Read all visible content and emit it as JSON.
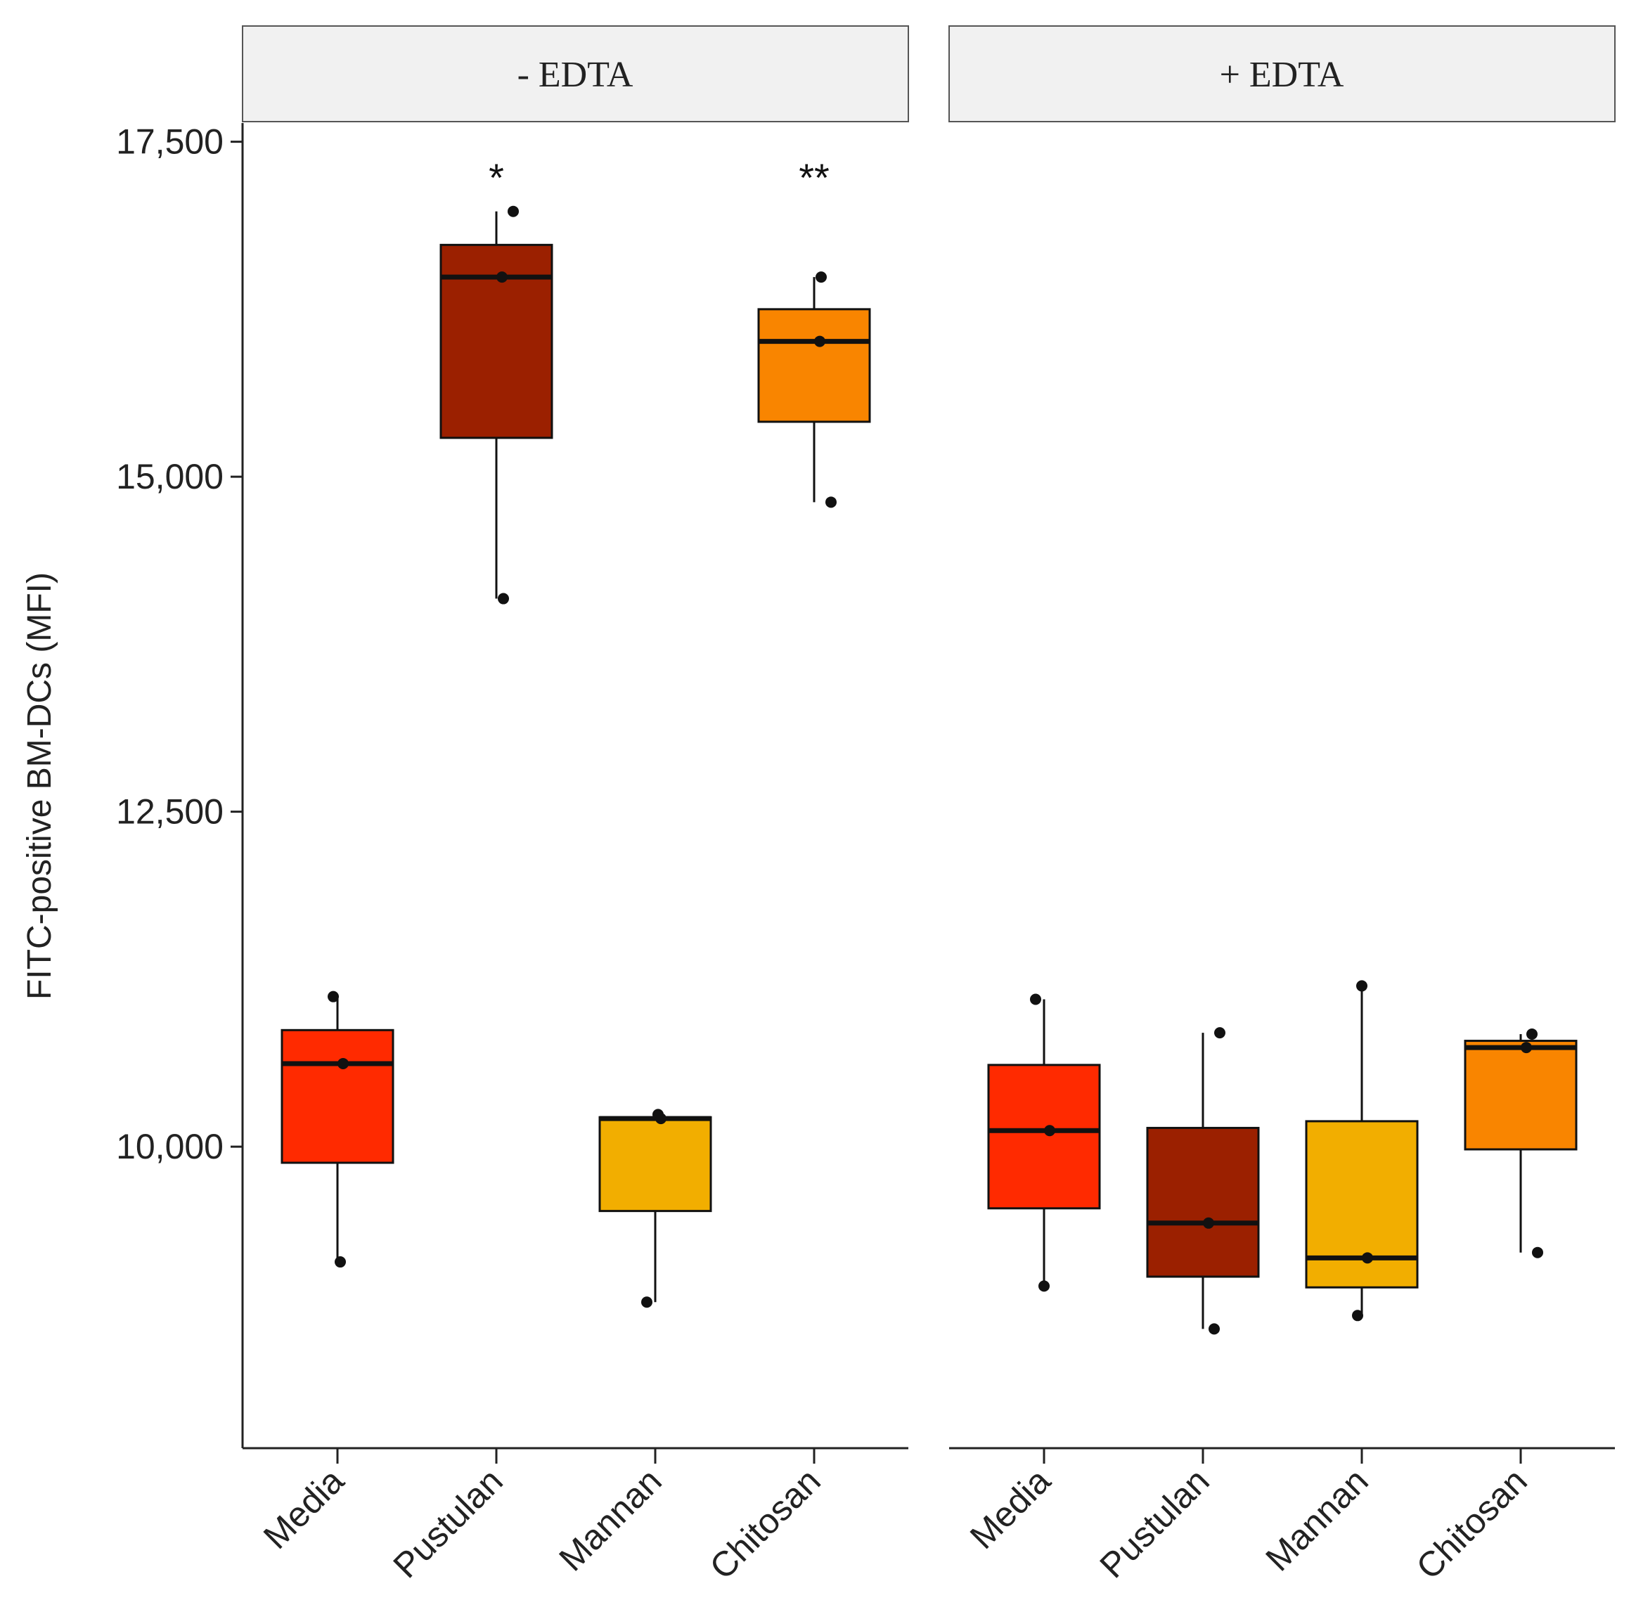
{
  "chart_data": {
    "type": "boxplot",
    "ylabel": "FITC-positive BM-DCs (MFI)",
    "ylim": [
      7750,
      17650
    ],
    "yticks": [
      {
        "value": 10000,
        "label": "10,000"
      },
      {
        "value": 12500,
        "label": "12,500"
      },
      {
        "value": 15000,
        "label": "15,000"
      },
      {
        "value": 17500,
        "label": "17,500"
      }
    ],
    "categories": [
      "Media",
      "Pustulan",
      "Mannan",
      "Chitosan"
    ],
    "colors": {
      "Media": "#FF2A00",
      "Pustulan": "#9B2000",
      "Mannan": "#F2AE00",
      "Chitosan": "#F98500"
    },
    "panels": [
      {
        "label": "- EDTA",
        "groups": [
          {
            "category": "Media",
            "whisker_low": 9140,
            "q1": 9880,
            "median": 10620,
            "q3": 10870,
            "whisker_high": 11120,
            "points": [
              11120,
              10620,
              9140
            ],
            "significance": ""
          },
          {
            "category": "Pustulan",
            "whisker_low": 14090,
            "q1": 15290,
            "median": 16490,
            "q3": 16730,
            "whisker_high": 16980,
            "points": [
              16980,
              16490,
              14090
            ],
            "significance": "*"
          },
          {
            "category": "Mannan",
            "whisker_low": 8840,
            "q1": 9520,
            "median": 10210,
            "q3": 10220,
            "whisker_high": 10240,
            "points": [
              10240,
              10210,
              8840
            ],
            "significance": ""
          },
          {
            "category": "Chitosan",
            "whisker_low": 14810,
            "q1": 15410,
            "median": 16010,
            "q3": 16250,
            "whisker_high": 16490,
            "points": [
              16490,
              16010,
              14810
            ],
            "significance": "**"
          }
        ]
      },
      {
        "label": "+ EDTA",
        "groups": [
          {
            "category": "Media",
            "whisker_low": 8960,
            "q1": 9540,
            "median": 10120,
            "q3": 10610,
            "whisker_high": 11100,
            "points": [
              11100,
              10120,
              8960
            ],
            "significance": ""
          },
          {
            "category": "Pustulan",
            "whisker_low": 8640,
            "q1": 9030,
            "median": 9430,
            "q3": 10140,
            "whisker_high": 10850,
            "points": [
              10850,
              9430,
              8640
            ],
            "significance": ""
          },
          {
            "category": "Mannan",
            "whisker_low": 8740,
            "q1": 8950,
            "median": 9170,
            "q3": 10190,
            "whisker_high": 11200,
            "points": [
              11200,
              9170,
              8740
            ],
            "significance": ""
          },
          {
            "category": "Chitosan",
            "whisker_low": 9210,
            "q1": 9980,
            "median": 10740,
            "q3": 10790,
            "whisker_high": 10840,
            "points": [
              10840,
              10740,
              9210
            ],
            "significance": ""
          }
        ]
      }
    ]
  }
}
